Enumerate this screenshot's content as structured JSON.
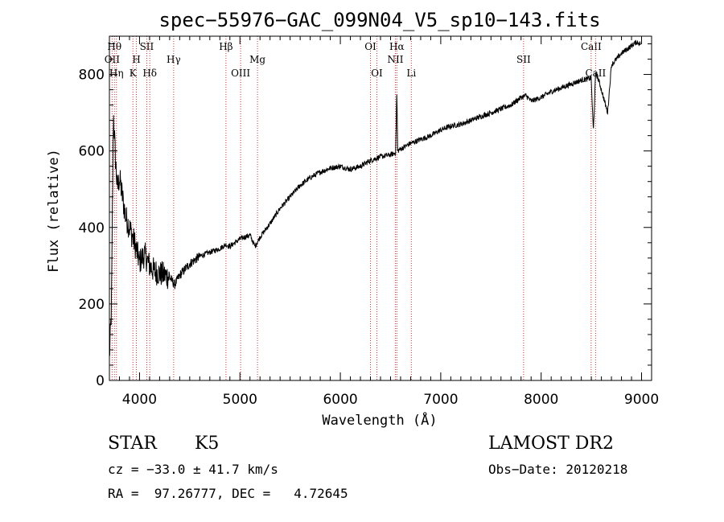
{
  "chart_data": {
    "type": "line",
    "title": "spec−55976−GAC_099N04_V5_sp10−143.fits",
    "xlabel": "Wavelength (Å)",
    "ylabel": "Flux (relative)",
    "xlim": [
      3700,
      9100
    ],
    "ylim": [
      0,
      900
    ],
    "xticks": [
      4000,
      5000,
      6000,
      7000,
      8000,
      9000
    ],
    "yticks": [
      0,
      200,
      400,
      600,
      800
    ],
    "grid": false,
    "series": [
      {
        "x": [
          3700,
          3720,
          3740,
          3760,
          3780,
          3800,
          3830,
          3860,
          3900,
          3950,
          4000,
          4050,
          4100,
          4150,
          4200,
          4250,
          4300,
          4350,
          4400,
          4500,
          4600,
          4700,
          4800,
          4860,
          4900,
          5000,
          5100,
          5150,
          5200,
          5300,
          5400,
          5500,
          5600,
          5700,
          5800,
          5900,
          6000,
          6100,
          6200,
          6300,
          6400,
          6500,
          6550,
          6563,
          6570,
          6600,
          6700,
          6800,
          6900,
          7000,
          7100,
          7200,
          7300,
          7400,
          7500,
          7600,
          7700,
          7800,
          7850,
          7900,
          8000,
          8100,
          8200,
          8300,
          8400,
          8498,
          8520,
          8542,
          8560,
          8600,
          8662,
          8700,
          8750,
          8800,
          8850,
          8900,
          8950,
          8990
        ],
        "y": [
          60,
          180,
          700,
          580,
          500,
          530,
          480,
          430,
          400,
          360,
          310,
          330,
          300,
          285,
          280,
          275,
          270,
          250,
          275,
          305,
          325,
          335,
          345,
          355,
          350,
          370,
          380,
          350,
          375,
          410,
          450,
          480,
          510,
          530,
          545,
          555,
          560,
          552,
          560,
          575,
          585,
          590,
          595,
          760,
          600,
          605,
          620,
          630,
          640,
          655,
          665,
          670,
          680,
          690,
          700,
          710,
          720,
          740,
          745,
          730,
          740,
          755,
          765,
          775,
          785,
          790,
          650,
          800,
          795,
          760,
          700,
          825,
          840,
          855,
          865,
          875,
          885,
          880
        ],
        "color": "#000000"
      }
    ],
    "lines": [
      {
        "wavelength": 3727,
        "label": "OII",
        "row": 2
      },
      {
        "wavelength": 3750,
        "label": "Hθ",
        "row": 1
      },
      {
        "wavelength": 3770,
        "label": "Hη",
        "row": 3
      },
      {
        "wavelength": 3934,
        "label": "K",
        "row": 3
      },
      {
        "wavelength": 3969,
        "label": "H",
        "row": 2
      },
      {
        "wavelength": 4072,
        "label": "SII",
        "row": 1
      },
      {
        "wavelength": 4102,
        "label": "Hδ",
        "row": 3
      },
      {
        "wavelength": 4340,
        "label": "Hγ",
        "row": 2
      },
      {
        "wavelength": 4861,
        "label": "Hβ",
        "row": 1
      },
      {
        "wavelength": 5007,
        "label": "OIII",
        "row": 3
      },
      {
        "wavelength": 5175,
        "label": "Mg",
        "row": 2
      },
      {
        "wavelength": 6300,
        "label": "OI",
        "row": 1
      },
      {
        "wavelength": 6364,
        "label": "OI",
        "row": 3
      },
      {
        "wavelength": 6548,
        "label": "NII",
        "row": 2
      },
      {
        "wavelength": 6563,
        "label": "Hα",
        "row": 1
      },
      {
        "wavelength": 6707,
        "label": "Li",
        "row": 3
      },
      {
        "wavelength": 7825,
        "label": "SII",
        "row": 2
      },
      {
        "wavelength": 8498,
        "label": "CaII",
        "row": 1
      },
      {
        "wavelength": 8542,
        "label": "CaII",
        "row": 3
      }
    ],
    "line_color": "#cc3333"
  },
  "info": {
    "class": "STAR",
    "subclass": "K5",
    "survey": "LAMOST DR2",
    "cz": "cz = −33.0 ± 41.7 km/s",
    "obs_date": "Obs−Date: 20120218",
    "radec": "RA =  97.26777, DEC =   4.72645"
  }
}
